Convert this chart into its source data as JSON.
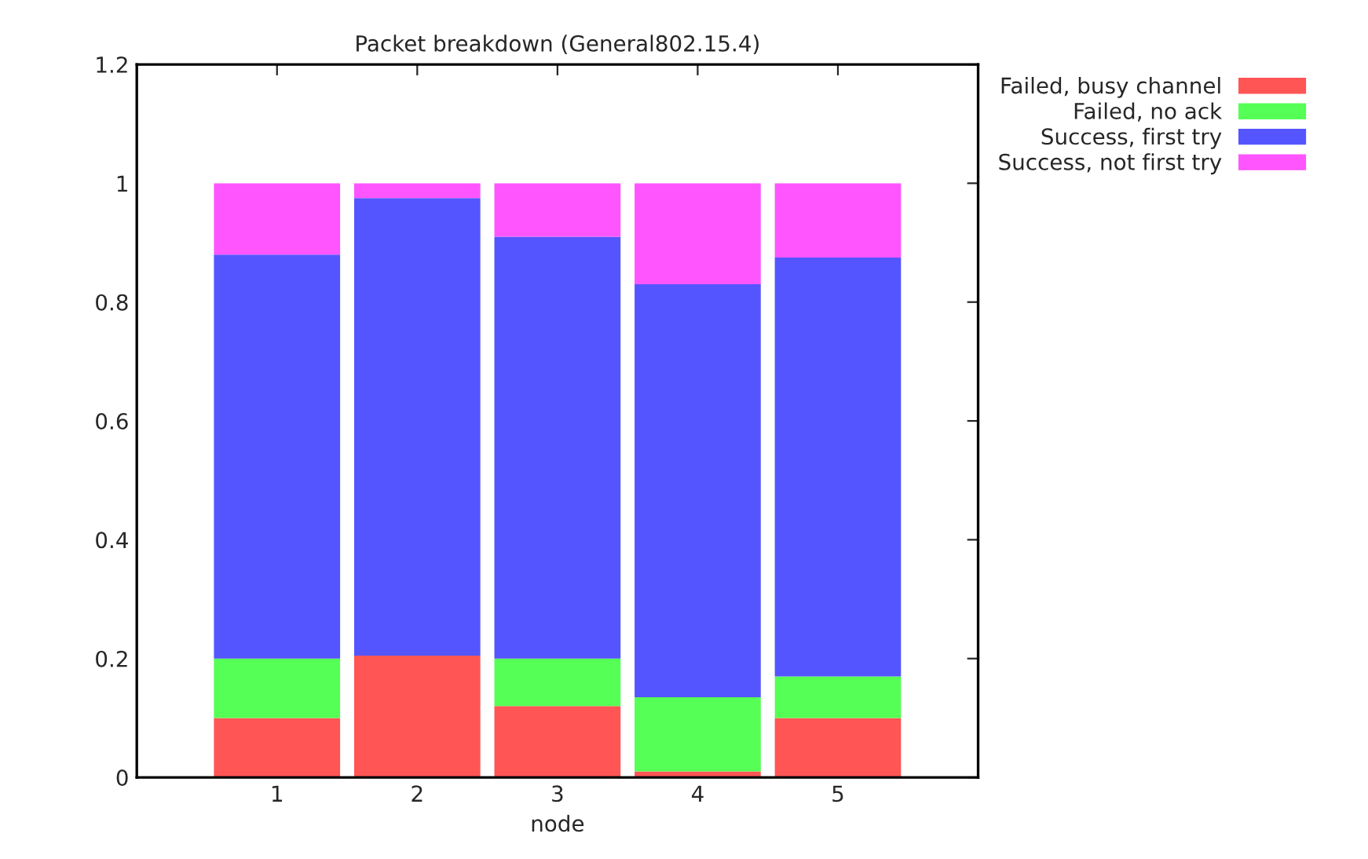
{
  "chart_data": {
    "type": "bar",
    "title": "Packet breakdown (General802.15.4)",
    "xlabel": "node",
    "categories": [
      "1",
      "2",
      "3",
      "4",
      "5"
    ],
    "stacked": true,
    "series": [
      {
        "name": "Failed, busy channel",
        "color": "#ff5555",
        "values": [
          0.1,
          0.205,
          0.12,
          0.01,
          0.1
        ]
      },
      {
        "name": "Failed, no ack",
        "color": "#55ff55",
        "values": [
          0.1,
          0,
          0.08,
          0.125,
          0.07
        ]
      },
      {
        "name": "Success, first try",
        "color": "#5555ff",
        "values": [
          0.68,
          0.77,
          0.71,
          0.695,
          0.705
        ]
      },
      {
        "name": "Success, not first try",
        "color": "#ff55ff",
        "values": [
          0.12,
          0.025,
          0.09,
          0.17,
          0.125
        ]
      }
    ],
    "ylim": [
      0,
      1.2
    ],
    "yticks": [
      0,
      0.2,
      0.4,
      0.6,
      0.8,
      1,
      1.2
    ],
    "grid": false,
    "legend": "top right"
  }
}
